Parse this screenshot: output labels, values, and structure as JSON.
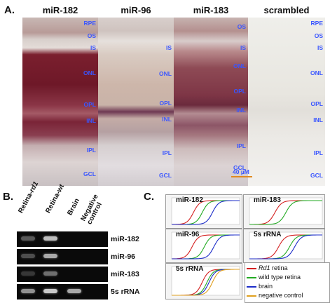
{
  "panel_a": {
    "letter": "A.",
    "columns": [
      {
        "title": "miR-182"
      },
      {
        "title": "miR-96"
      },
      {
        "title": "miR-183"
      },
      {
        "title": "scrambled"
      }
    ],
    "layers": {
      "col1": [
        "RPE",
        "OS",
        "IS",
        "ONL",
        "OPL",
        "INL",
        "IPL",
        "GCL"
      ],
      "col2": [
        "IS",
        "ONL",
        "OPL",
        "INL",
        "IPL",
        "GCL"
      ],
      "col3": [
        "OS",
        "IS",
        "ONL",
        "OPL",
        "INL",
        "IPL",
        "GCL"
      ],
      "col4": [
        "RPE",
        "OS",
        "IS",
        "ONL",
        "OPL",
        "INL",
        "IPL",
        "GCL"
      ]
    },
    "scale_bar": "40 µM"
  },
  "panel_b": {
    "letter": "B.",
    "lanes": [
      {
        "prefix": "Retina-",
        "italic": "rd1"
      },
      {
        "prefix": "Retina-wt",
        "italic": ""
      },
      {
        "prefix": "Brain",
        "italic": ""
      },
      {
        "prefix": "Negative control",
        "italic": ""
      }
    ],
    "rows": [
      "miR-182",
      "miR-96",
      "miR-183",
      "5s rRNA"
    ],
    "band_intensity": [
      [
        0.35,
        0.8,
        0,
        0
      ],
      [
        0.3,
        0.7,
        0,
        0
      ],
      [
        0.2,
        0.45,
        0,
        0
      ],
      [
        0.6,
        0.85,
        0.7,
        0
      ]
    ]
  },
  "panel_c": {
    "letter": "C.",
    "plots": [
      {
        "title": "miR-182",
        "curves": [
          0.32,
          0.45,
          0.6,
          null
        ]
      },
      {
        "title": "miR-183",
        "curves": [
          0.35,
          0.5,
          null,
          null
        ]
      },
      {
        "title": "miR-96",
        "curves": [
          0.3,
          0.48,
          0.62,
          null
        ]
      },
      {
        "title": "5s rRNA",
        "curves": [
          0.4,
          0.55,
          0.62,
          null
        ]
      },
      {
        "title": "5s rRNA",
        "curves": [
          0.45,
          0.52,
          0.55,
          0.6
        ]
      }
    ],
    "legend": [
      {
        "italic": "Rd1",
        "text": " retina",
        "color": "#d42020"
      },
      {
        "italic": "",
        "text": "wild type retina",
        "color": "#22aa22"
      },
      {
        "italic": "",
        "text": "brain",
        "color": "#1c2cc8"
      },
      {
        "italic": "",
        "text": "negative control",
        "color": "#e0a020"
      }
    ]
  }
}
